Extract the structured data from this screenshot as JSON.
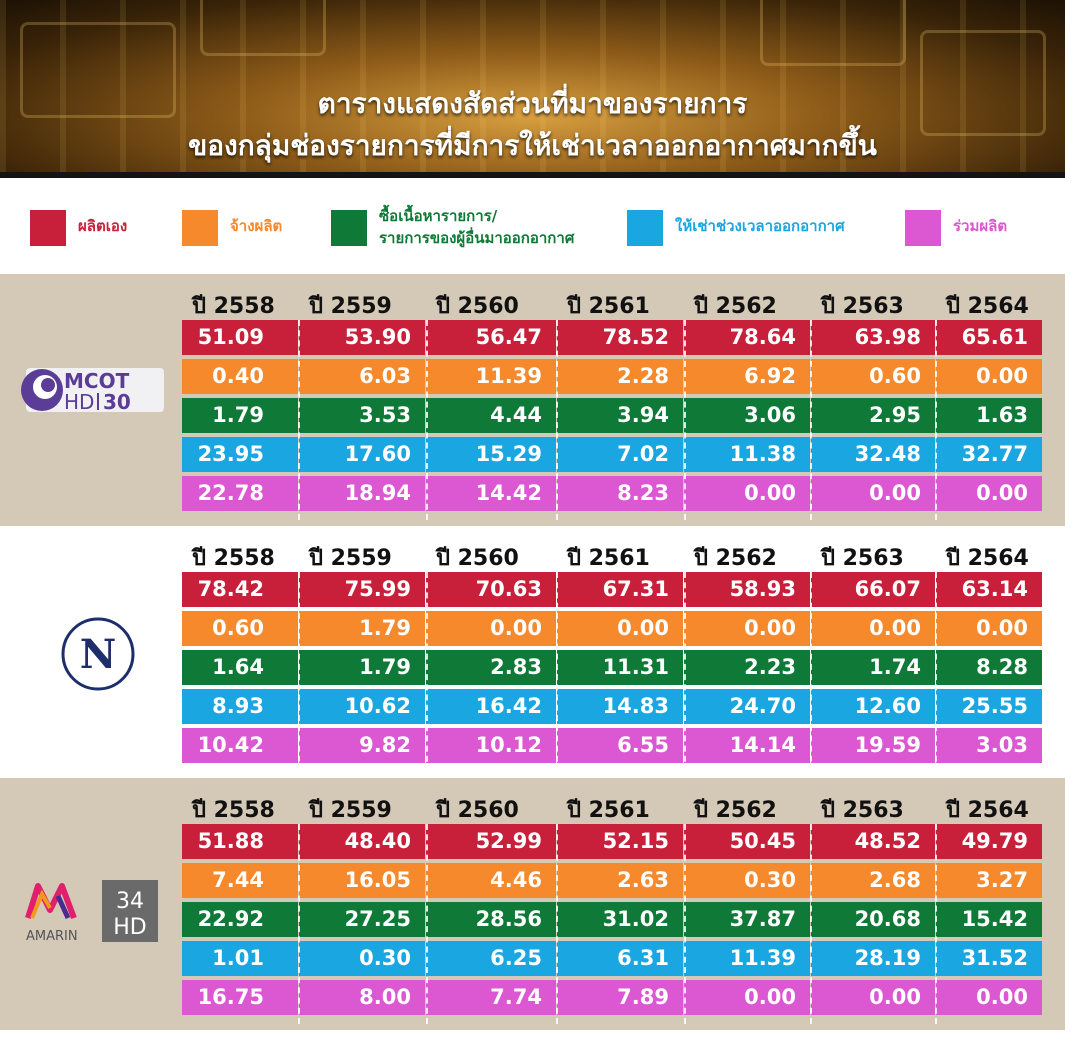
{
  "header": {
    "title_line1": "ตารางแสดงสัดส่วนที่มาของรายการ",
    "title_line2": "ของกลุ่มช่องรายการที่มีการให้เช่าเวลาออกอากาศมากขึ้น"
  },
  "legend": [
    {
      "label": "ผลิตเอง",
      "color": "#c8203a"
    },
    {
      "label": "จ้างผลิต",
      "color": "#f5892c"
    },
    {
      "label": "ซื้อเนื้อหารายการ/",
      "label2": "รายการของผู้อื่นมาออกอากาศ",
      "color": "#0f7a37"
    },
    {
      "label": "ให้เช่าช่วงเวลาออกอากาศ",
      "color": "#1aa6e0"
    },
    {
      "label": "ร่วมผลิต",
      "color": "#dc57d2"
    }
  ],
  "chart_data": {
    "type": "table",
    "columns": [
      "ปี 2558",
      "ปี 2559",
      "ปี 2560",
      "ปี 2561",
      "ปี 2562",
      "ปี 2563",
      "ปี 2564"
    ],
    "row_colors": [
      "#c8203a",
      "#f5892c",
      "#0f7a37",
      "#1aa6e0",
      "#dc57d2"
    ],
    "channels": [
      {
        "logo_text": "MCOT",
        "logo_sub": "HD",
        "logo_num": "30",
        "rows": [
          [
            "51.09",
            "53.90",
            "56.47",
            "78.52",
            "78.64",
            "63.98",
            "65.61"
          ],
          [
            "0.40",
            "6.03",
            "11.39",
            "2.28",
            "6.92",
            "0.60",
            "0.00"
          ],
          [
            "1.79",
            "3.53",
            "4.44",
            "3.94",
            "3.06",
            "2.95",
            "1.63"
          ],
          [
            "23.95",
            "17.60",
            "15.29",
            "7.02",
            "11.38",
            "32.48",
            "32.77"
          ],
          [
            "22.78",
            "18.94",
            "14.42",
            "8.23",
            "0.00",
            "0.00",
            "0.00"
          ]
        ]
      },
      {
        "logo_text": "N",
        "rows": [
          [
            "78.42",
            "75.99",
            "70.63",
            "67.31",
            "58.93",
            "66.07",
            "63.14"
          ],
          [
            "0.60",
            "1.79",
            "0.00",
            "0.00",
            "0.00",
            "0.00",
            "0.00"
          ],
          [
            "1.64",
            "1.79",
            "2.83",
            "11.31",
            "2.23",
            "1.74",
            "8.28"
          ],
          [
            "8.93",
            "10.62",
            "16.42",
            "14.83",
            "24.70",
            "12.60",
            "25.55"
          ],
          [
            "10.42",
            "9.82",
            "10.12",
            "6.55",
            "14.14",
            "19.59",
            "3.03"
          ]
        ]
      },
      {
        "logo_text": "AMARIN",
        "logo_num": "34",
        "logo_sub": "HD",
        "rows": [
          [
            "51.88",
            "48.40",
            "52.99",
            "52.15",
            "50.45",
            "48.52",
            "49.79"
          ],
          [
            "7.44",
            "16.05",
            "4.46",
            "2.63",
            "0.30",
            "2.68",
            "3.27"
          ],
          [
            "22.92",
            "27.25",
            "28.56",
            "31.02",
            "37.87",
            "20.68",
            "15.42"
          ],
          [
            "1.01",
            "0.30",
            "6.25",
            "6.31",
            "11.39",
            "28.19",
            "31.52"
          ],
          [
            "16.75",
            "8.00",
            "7.74",
            "7.89",
            "0.00",
            "0.00",
            "0.00"
          ]
        ]
      }
    ]
  }
}
